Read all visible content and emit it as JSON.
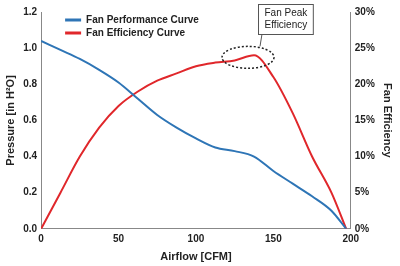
{
  "chart_data": {
    "type": "line",
    "x_label": "Airflow [CFM]",
    "y_label": "Pressure [in H²O]",
    "y2_label": "Fan Efficiency",
    "annotation": "Fan Peak Efficiency",
    "legend": "upper left",
    "grid": false,
    "xlim": [
      0,
      200
    ],
    "xticks": [
      0,
      50,
      100,
      150,
      200
    ],
    "ylim": [
      0,
      1.2
    ],
    "yticks": [
      {
        "value": 0,
        "label": "0.0"
      },
      0.2,
      0.4,
      0.6,
      0.8,
      {
        "value": 1,
        "label": "1.0"
      },
      1.2
    ],
    "y2lim": [
      0,
      30
    ],
    "y2ticks": [
      {
        "value": 0,
        "label": "0%"
      },
      {
        "value": 5,
        "label": "5%"
      },
      {
        "value": 10,
        "label": "10%"
      },
      {
        "value": 15,
        "label": "15%"
      },
      {
        "value": 20,
        "label": "20%"
      },
      {
        "value": 25,
        "label": "25%"
      },
      {
        "value": 30,
        "label": "30%"
      }
    ],
    "x": [
      0,
      12.5,
      25,
      37.5,
      50,
      62.5,
      75,
      87.5,
      100,
      112.5,
      125,
      137.5,
      150,
      162.5,
      175,
      187.5,
      197
    ],
    "series": [
      {
        "name": "Fan Performance Curve",
        "color": "#2e75b6",
        "values": [
          1.04,
          0.99,
          0.94,
          0.88,
          0.81,
          0.72,
          0.63,
          0.56,
          0.5,
          0.45,
          0.43,
          0.4,
          0.32,
          0.25,
          0.18,
          0.1,
          0
        ]
      },
      {
        "name": "Fan Efficiency Curve",
        "color": "#e0272b",
        "axis": "y2",
        "values": [
          0,
          5,
          10,
          14,
          17,
          19,
          20.5,
          21.5,
          22.5,
          23,
          23.3,
          24,
          21,
          16,
          10,
          5,
          0
        ]
      }
    ]
  }
}
